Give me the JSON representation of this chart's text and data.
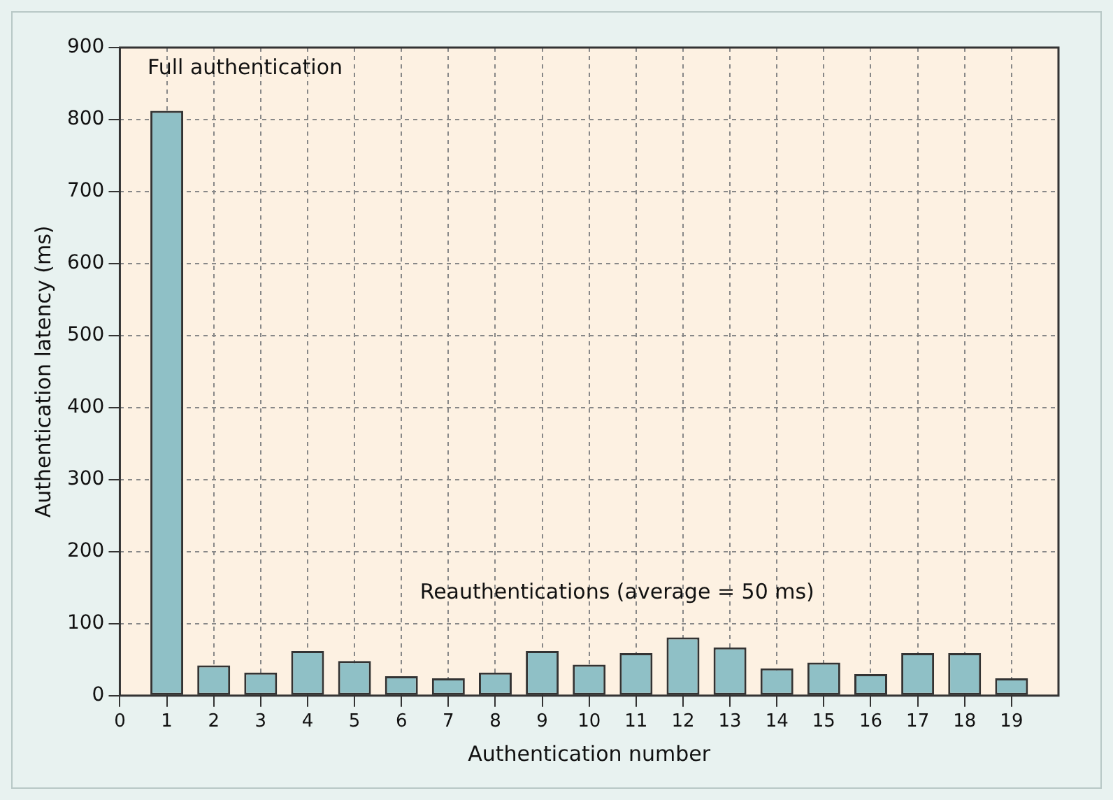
{
  "chart_data": {
    "type": "bar",
    "xlabel": "Authentication number",
    "ylabel": "Authentication latency (ms)",
    "x": [
      1,
      2,
      3,
      4,
      5,
      6,
      7,
      8,
      9,
      10,
      11,
      12,
      13,
      14,
      15,
      16,
      17,
      18,
      19
    ],
    "values": [
      812,
      42,
      32,
      62,
      48,
      27,
      24,
      32,
      62,
      43,
      59,
      81,
      67,
      38,
      46,
      30,
      59,
      59,
      24
    ],
    "color": "#8fc0c6",
    "xlim": [
      0,
      20
    ],
    "xticks": [
      0,
      1,
      2,
      3,
      4,
      5,
      6,
      7,
      8,
      9,
      10,
      11,
      12,
      13,
      14,
      15,
      16,
      17,
      18,
      19
    ],
    "ylim": [
      0,
      900
    ],
    "yticks": [
      0,
      100,
      200,
      300,
      400,
      500,
      600,
      700,
      800,
      900
    ],
    "grid": true,
    "legend": false,
    "annotations": [
      "Full authentication",
      "Reauthentications (average = 50 ms)"
    ]
  }
}
